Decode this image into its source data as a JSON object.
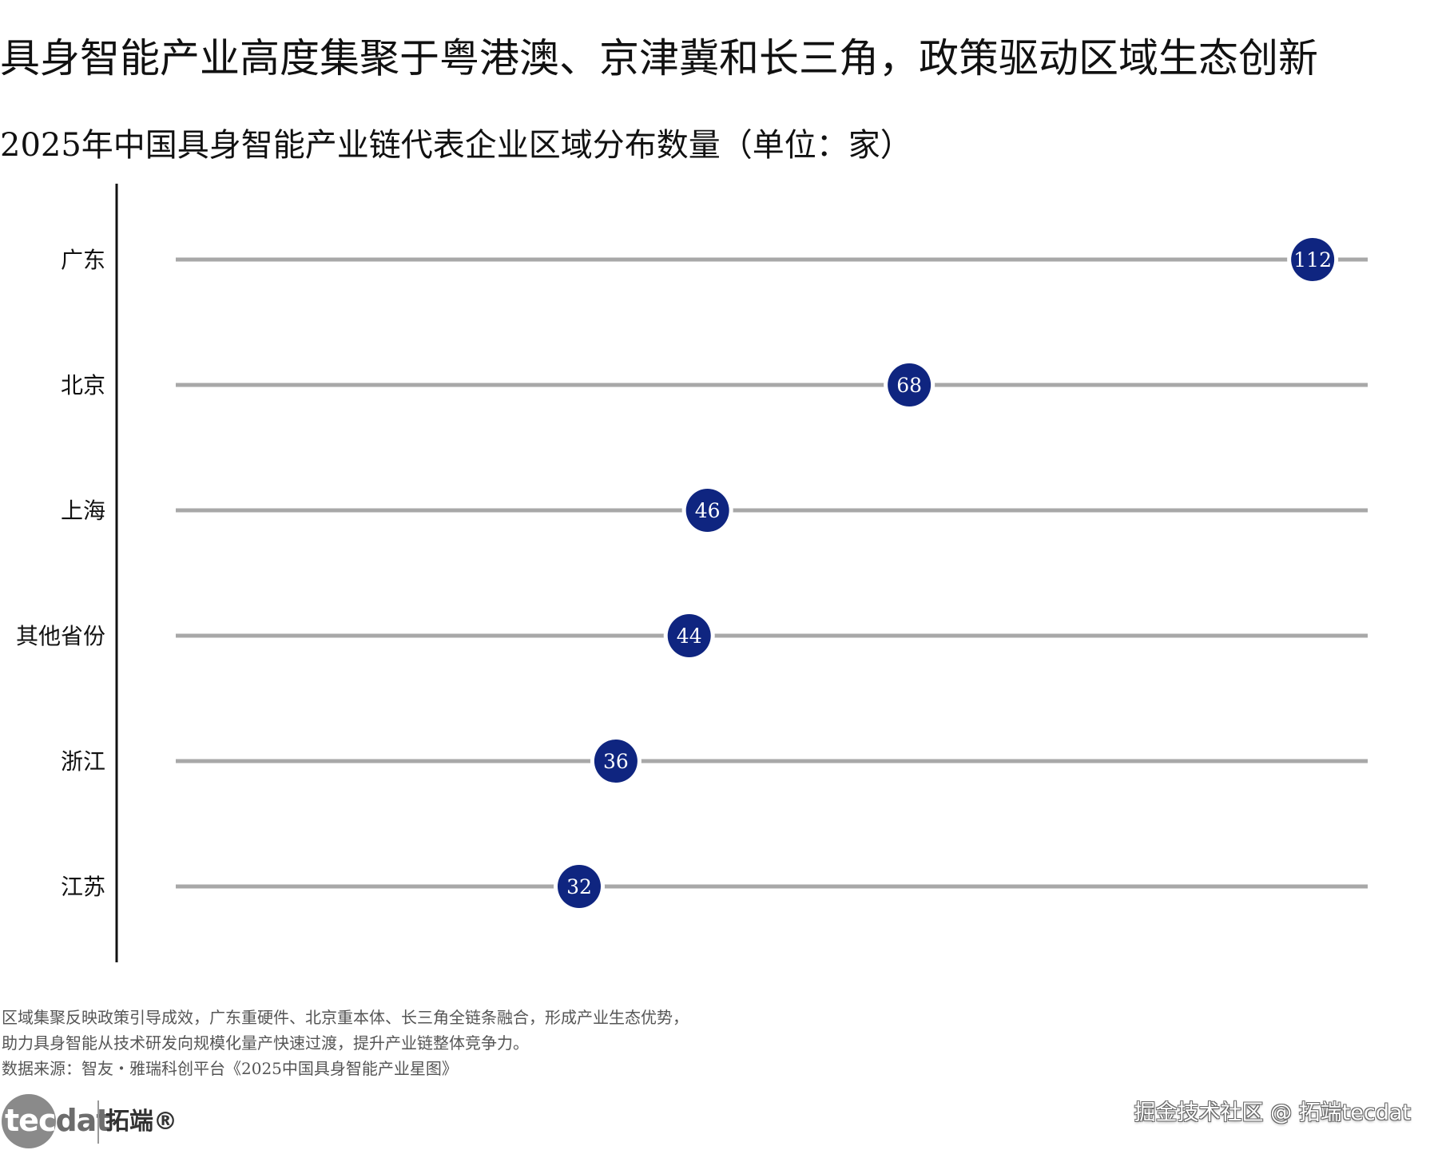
{
  "headline": "具身智能产业高度集聚于粤港澳、京津冀和长三角，政策驱动区域生态创新",
  "chart_data": {
    "type": "dot",
    "title": "2025年中国具身智能产业链代表企业区域分布数量（单位：家）",
    "categories": [
      "广东",
      "北京",
      "上海",
      "其他省份",
      "浙江",
      "江苏"
    ],
    "values": [
      112,
      68,
      46,
      44,
      36,
      32
    ],
    "value_labels": [
      "112",
      "68",
      "46",
      "44",
      "36",
      "32"
    ],
    "xlim": [
      -12,
      118
    ],
    "grid": false,
    "legend": "none",
    "colors": {
      "dot": "#0f2580",
      "track": "#a8a8a8",
      "axis": "#111111",
      "dot_text": "#ffffff"
    }
  },
  "notes": [
    "区域集聚反映政策引导成效，广东重硬件、北京重本体、长三角全链条融合，形成产业生态优势，",
    "助力具身智能从技术研发向规模化量产快速过渡，提升产业链整体竞争力。",
    "数据来源：智友・雅瑞科创平台《2025中国具身智能产业星图》"
  ],
  "logo": {
    "word_main": "tec",
    "word_tail": "dat",
    "cn": "拓端®"
  },
  "watermark": "掘金技术社区 @ 拓端tecdat"
}
